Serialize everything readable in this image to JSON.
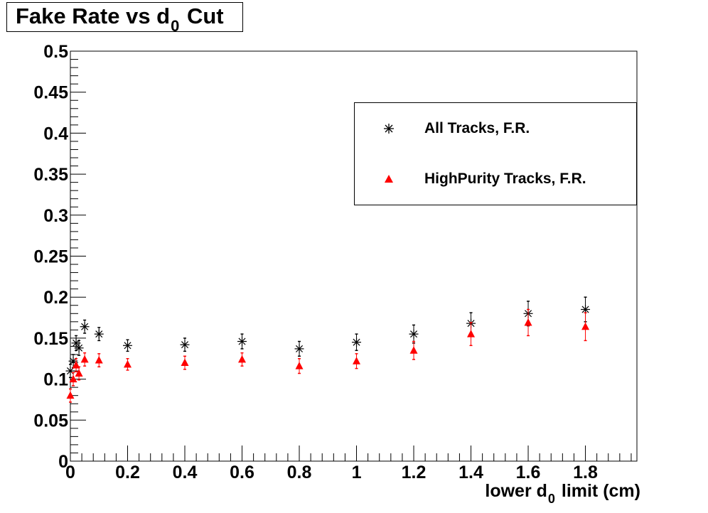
{
  "chart_data": {
    "type": "scatter",
    "title": {
      "main": "Fake Rate vs d",
      "sub": "0",
      "tail": " Cut"
    },
    "xlabel": {
      "main": "lower d",
      "sub": "0",
      "tail": " limit (cm)"
    },
    "ylabel": "",
    "xlim": [
      0,
      1.98
    ],
    "ylim": [
      0,
      0.5
    ],
    "x_ticks": [
      "0",
      "0.2",
      "0.4",
      "0.6",
      "0.8",
      "1",
      "1.2",
      "1.4",
      "1.6",
      "1.8"
    ],
    "y_ticks": [
      "0",
      "0.05",
      "0.1",
      "0.15",
      "0.2",
      "0.25",
      "0.3",
      "0.35",
      "0.4",
      "0.45",
      "0.5"
    ],
    "legend_position": "top-right",
    "series": [
      {
        "name": "All Tracks, F.R.",
        "marker": "star",
        "color": "#000000",
        "x": [
          0,
          0.01,
          0.02,
          0.03,
          0.05,
          0.1,
          0.2,
          0.4,
          0.6,
          0.8,
          1.0,
          1.2,
          1.4,
          1.6,
          1.8
        ],
        "y": [
          0.11,
          0.122,
          0.144,
          0.138,
          0.164,
          0.155,
          0.141,
          0.142,
          0.146,
          0.137,
          0.145,
          0.155,
          0.168,
          0.18,
          0.185
        ],
        "err": [
          0.008,
          0.008,
          0.009,
          0.009,
          0.008,
          0.008,
          0.007,
          0.008,
          0.009,
          0.009,
          0.01,
          0.011,
          0.013,
          0.015,
          0.015
        ]
      },
      {
        "name": "HighPurity Tracks, F.R.",
        "marker": "triangle",
        "color": "#ff0000",
        "x": [
          0,
          0.01,
          0.02,
          0.03,
          0.05,
          0.1,
          0.2,
          0.4,
          0.6,
          0.8,
          1.0,
          1.2,
          1.4,
          1.6,
          1.8
        ],
        "y": [
          0.08,
          0.1,
          0.117,
          0.107,
          0.124,
          0.123,
          0.118,
          0.12,
          0.124,
          0.116,
          0.122,
          0.135,
          0.155,
          0.169,
          0.164
        ],
        "err": [
          0.008,
          0.008,
          0.008,
          0.008,
          0.008,
          0.008,
          0.007,
          0.008,
          0.008,
          0.009,
          0.009,
          0.011,
          0.014,
          0.016,
          0.017
        ]
      }
    ]
  }
}
